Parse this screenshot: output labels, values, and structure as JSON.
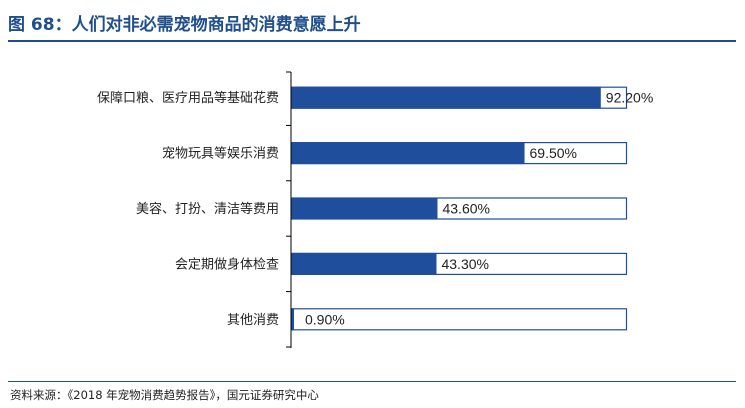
{
  "figure": {
    "title": "图 68：人们对非必需宠物商品的消费意愿上升",
    "source": "资料来源：《2018 年宠物消费趋势报告》，国元证券研究中心"
  },
  "colors": {
    "title": "#1F4E8C",
    "bar_fill": "#1F4E9C",
    "bar_outline": "#1F4E9C",
    "axis": "#000000"
  },
  "chart_data": {
    "type": "bar",
    "orientation": "horizontal",
    "style": "filled bar inside outlined 100% track",
    "categories": [
      "保障口粮、医疗用品等基础花费",
      "宠物玩具等娱乐消费",
      "美容、打扮、清洁等费用",
      "会定期做身体检查",
      "其他消费"
    ],
    "values": [
      92.2,
      69.5,
      43.6,
      43.3,
      0.9
    ],
    "value_labels": [
      "92.20%",
      "69.50%",
      "43.60%",
      "43.30%",
      "0.90%"
    ],
    "xlim": [
      0,
      100
    ],
    "unit": "%",
    "grid": false,
    "legend": "none"
  }
}
